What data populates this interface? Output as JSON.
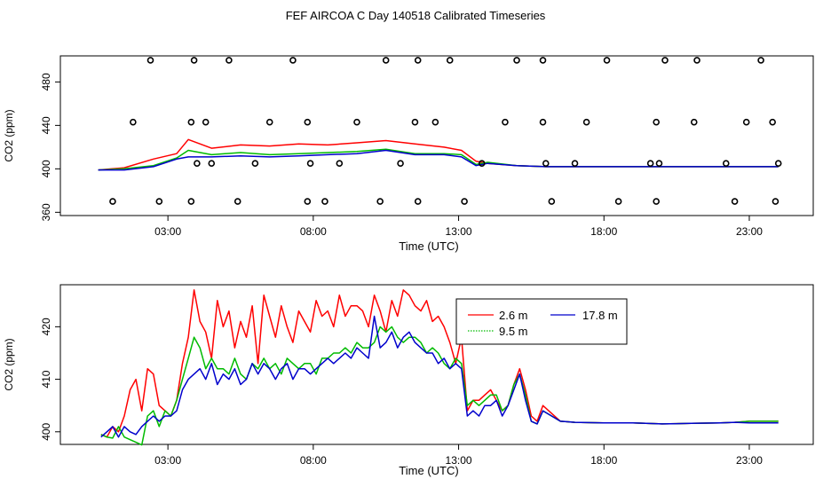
{
  "title": "FEF AIRCOA C  Day 140518  Calibrated Timeseries",
  "chart_data": [
    {
      "type": "line",
      "panel": "top",
      "xlabel": "Time (UTC)",
      "ylabel": "CO2 (ppm)",
      "x_ticks": [
        "03:00",
        "08:00",
        "13:00",
        "18:00",
        "23:00"
      ],
      "x_tick_hours": [
        3,
        8,
        13,
        18,
        23
      ],
      "xlim": [
        -0.7,
        25.2
      ],
      "ylim": [
        357,
        504
      ],
      "y_ticks": [
        360,
        400,
        440,
        480
      ],
      "y_tick_labels": [
        "360",
        "400",
        "440",
        "480"
      ],
      "series": [
        {
          "color": "#ff0000",
          "x": [
            0.6,
            1.5,
            2.5,
            3.3,
            3.7,
            4.5,
            5.5,
            6.5,
            7.5,
            8.5,
            9.5,
            10.5,
            11.5,
            12.5,
            13.1,
            13.6,
            14,
            15,
            16,
            18,
            20,
            22,
            23,
            24
          ],
          "values": [
            399,
            401,
            409,
            414,
            427,
            419,
            422,
            421,
            423,
            422,
            424,
            426,
            423,
            420,
            417,
            407,
            405,
            403,
            402,
            402,
            402,
            402,
            402,
            402
          ]
        },
        {
          "color": "#00bb00",
          "x": [
            0.6,
            1.5,
            2.5,
            3.3,
            3.7,
            4.5,
            5.5,
            6.5,
            7.5,
            8.5,
            9.5,
            10.5,
            11.5,
            12.5,
            13.1,
            13.6,
            14,
            15,
            16,
            18,
            20,
            22,
            23,
            24
          ],
          "values": [
            399,
            400,
            403,
            410,
            417,
            413,
            415,
            413,
            414,
            415,
            416,
            418,
            414,
            414,
            413,
            404,
            406,
            403,
            402,
            402,
            402,
            402,
            402,
            402
          ]
        },
        {
          "color": "#0000cc",
          "x": [
            0.6,
            1.5,
            2.5,
            3.3,
            3.7,
            4.5,
            5.5,
            6.5,
            7.5,
            8.5,
            9.5,
            10.5,
            11.5,
            12.5,
            13.1,
            13.6,
            14,
            15,
            16,
            18,
            20,
            22,
            23,
            24
          ],
          "values": [
            399,
            399,
            402,
            409,
            411,
            411,
            412,
            411,
            412,
            413,
            414,
            417,
            413,
            413,
            411,
            403,
            405,
            403,
            402,
            402,
            402,
            402,
            402,
            402
          ]
        }
      ],
      "calibration_points": {
        "x": [
          1.1,
          2.4,
          1.8,
          2.7,
          3.8,
          3.9,
          3.8,
          4.5,
          4.3,
          4.0,
          5.1,
          5.4,
          6.0,
          6.5,
          7.3,
          7.8,
          7.8,
          7.9,
          8.4,
          8.9,
          9.5,
          10.5,
          10.3,
          11.0,
          11.5,
          11.6,
          11.6,
          12.2,
          12.7,
          13.2,
          13.8,
          14.6,
          15.0,
          16.2,
          16.0,
          15.9,
          15.9,
          17.0,
          17.4,
          18.1,
          18.5,
          19.6,
          20.1,
          19.8,
          19.8,
          19.9,
          21.2,
          21.1,
          22.5,
          22.2,
          22.9,
          23.4,
          23.9,
          23.8,
          24.0
        ],
        "values": [
          370,
          500,
          443,
          370,
          370,
          500,
          443,
          405,
          443,
          405,
          500,
          370,
          405,
          443,
          500,
          443,
          370,
          405,
          370,
          405,
          443,
          500,
          370,
          405,
          443,
          500,
          370,
          443,
          500,
          370,
          405,
          443,
          500,
          370,
          405,
          500,
          443,
          405,
          443,
          500,
          370,
          405,
          500,
          370,
          443,
          405,
          500,
          443,
          370,
          405,
          443,
          500,
          370,
          443,
          405
        ]
      }
    },
    {
      "type": "line",
      "panel": "bottom",
      "xlabel": "Time (UTC)",
      "ylabel": "CO2 (ppm)",
      "x_ticks": [
        "03:00",
        "08:00",
        "13:00",
        "18:00",
        "23:00"
      ],
      "x_tick_hours": [
        3,
        8,
        13,
        18,
        23
      ],
      "xlim": [
        -0.7,
        25.2
      ],
      "ylim": [
        397.6,
        428
      ],
      "y_ticks": [
        400,
        410,
        420
      ],
      "y_tick_labels": [
        "400",
        "410",
        "420"
      ],
      "legend": {
        "placement": "top-right",
        "entries": [
          {
            "label": "2.6 m",
            "color": "#ff0000",
            "dash": "solid"
          },
          {
            "label": "17.8 m",
            "color": "#0000cc",
            "dash": "solid"
          },
          {
            "label": "9.5 m",
            "color": "#00bb00",
            "dash": "dotted"
          }
        ]
      },
      "series": [
        {
          "color": "#ff0000",
          "x": [
            0.7,
            0.9,
            1.1,
            1.3,
            1.5,
            1.7,
            1.9,
            2.1,
            2.3,
            2.5,
            2.7,
            2.9,
            3.1,
            3.3,
            3.5,
            3.7,
            3.9,
            4.1,
            4.3,
            4.5,
            4.7,
            4.9,
            5.1,
            5.3,
            5.5,
            5.7,
            5.9,
            6.1,
            6.3,
            6.5,
            6.7,
            6.9,
            7.1,
            7.3,
            7.5,
            7.7,
            7.9,
            8.1,
            8.3,
            8.5,
            8.7,
            8.9,
            9.1,
            9.3,
            9.5,
            9.7,
            9.9,
            10.1,
            10.3,
            10.5,
            10.7,
            10.9,
            11.1,
            11.3,
            11.5,
            11.7,
            11.9,
            12.1,
            12.3,
            12.5,
            12.7,
            12.9,
            13.1,
            13.3,
            13.5,
            13.7,
            13.9,
            14.1,
            14.3,
            14.5,
            14.7,
            14.9,
            15.1,
            15.3,
            15.5,
            15.7,
            15.9,
            16.5,
            17,
            18,
            19,
            20,
            21,
            22,
            22.5,
            23,
            23.5,
            24
          ],
          "values": [
            399.5,
            399,
            401,
            400,
            403,
            408,
            410,
            404,
            412,
            411,
            405,
            404,
            403,
            406,
            413,
            418,
            427,
            421,
            419,
            414,
            425,
            420,
            423,
            416,
            421,
            418,
            424,
            413,
            426,
            422,
            418,
            424,
            420,
            417,
            423,
            421,
            419,
            425,
            422,
            423,
            420,
            426,
            422,
            424,
            424,
            423,
            420,
            426,
            423,
            419,
            425,
            422,
            427,
            426,
            424,
            423,
            425,
            421,
            422,
            420,
            417,
            413,
            418,
            404,
            406,
            406,
            407,
            408,
            406,
            404,
            405,
            409,
            412,
            408,
            403,
            402,
            405,
            402,
            401.8,
            401.7,
            401.7,
            401.5,
            401.6,
            401.7,
            401.8,
            402,
            402,
            402
          ]
        },
        {
          "color": "#00bb00",
          "x": [
            0.7,
            0.9,
            1.1,
            1.3,
            1.5,
            1.7,
            1.9,
            2.1,
            2.3,
            2.5,
            2.7,
            2.9,
            3.1,
            3.3,
            3.5,
            3.7,
            3.9,
            4.1,
            4.3,
            4.5,
            4.7,
            4.9,
            5.1,
            5.3,
            5.5,
            5.7,
            5.9,
            6.1,
            6.3,
            6.5,
            6.7,
            6.9,
            7.1,
            7.3,
            7.5,
            7.7,
            7.9,
            8.1,
            8.3,
            8.5,
            8.7,
            8.9,
            9.1,
            9.3,
            9.5,
            9.7,
            9.9,
            10.1,
            10.3,
            10.5,
            10.7,
            10.9,
            11.1,
            11.3,
            11.5,
            11.7,
            11.9,
            12.1,
            12.3,
            12.5,
            12.7,
            12.9,
            13.1,
            13.3,
            13.5,
            13.7,
            13.9,
            14.1,
            14.3,
            14.5,
            14.7,
            14.9,
            15.1,
            15.3,
            15.5,
            15.7,
            15.9,
            16.5,
            17,
            18,
            19,
            20,
            21,
            22,
            22.5,
            23,
            23.5,
            24
          ],
          "values": [
            399.5,
            399,
            398.8,
            401,
            399,
            398.5,
            398,
            397.5,
            403,
            404,
            401,
            404,
            403,
            406,
            410,
            414,
            418,
            416,
            412,
            414,
            412,
            412,
            411,
            414,
            411,
            410,
            413,
            412,
            414,
            412,
            413,
            411,
            414,
            413,
            412,
            413,
            413,
            411,
            414,
            414,
            415,
            415,
            416,
            415,
            417,
            416,
            416,
            417,
            420,
            419,
            420,
            418,
            417,
            418,
            418,
            417,
            415,
            416,
            415,
            413,
            412,
            414,
            413,
            405,
            406,
            405,
            406,
            407,
            407,
            404,
            405,
            409,
            411,
            407,
            402,
            401.5,
            404,
            402,
            401.8,
            401.7,
            401.7,
            401.5,
            401.6,
            401.7,
            401.8,
            402,
            402,
            402
          ]
        },
        {
          "color": "#0000cc",
          "x": [
            0.7,
            0.9,
            1.1,
            1.3,
            1.5,
            1.7,
            1.9,
            2.1,
            2.3,
            2.5,
            2.7,
            2.9,
            3.1,
            3.3,
            3.5,
            3.7,
            3.9,
            4.1,
            4.3,
            4.5,
            4.7,
            4.9,
            5.1,
            5.3,
            5.5,
            5.7,
            5.9,
            6.1,
            6.3,
            6.5,
            6.7,
            6.9,
            7.1,
            7.3,
            7.5,
            7.7,
            7.9,
            8.1,
            8.3,
            8.5,
            8.7,
            8.9,
            9.1,
            9.3,
            9.5,
            9.7,
            9.9,
            10.1,
            10.3,
            10.5,
            10.7,
            10.9,
            11.1,
            11.3,
            11.5,
            11.7,
            11.9,
            12.1,
            12.3,
            12.5,
            12.7,
            12.9,
            13.1,
            13.3,
            13.5,
            13.7,
            13.9,
            14.1,
            14.3,
            14.5,
            14.7,
            14.9,
            15.1,
            15.3,
            15.5,
            15.7,
            15.9,
            16.5,
            17,
            18,
            19,
            20,
            21,
            22,
            22.5,
            23,
            23.5,
            24
          ],
          "values": [
            399,
            400,
            401,
            399,
            401,
            400,
            399.5,
            401,
            402,
            403,
            402,
            403,
            403,
            404,
            408,
            410,
            411,
            412,
            410,
            413,
            409,
            411,
            410,
            412,
            409,
            410,
            413,
            411,
            413,
            412,
            410,
            412,
            413,
            410,
            412,
            412,
            411,
            412,
            413,
            414,
            413,
            414,
            415,
            414,
            416,
            415,
            414,
            422,
            416,
            417,
            419,
            416,
            418,
            419,
            417,
            416,
            415,
            415,
            413,
            414,
            412,
            413,
            412,
            403,
            404,
            403,
            405,
            405,
            406,
            403,
            405,
            408,
            411,
            406,
            402,
            401.5,
            404,
            402,
            401.8,
            401.7,
            401.7,
            401.5,
            401.6,
            401.7,
            401.8,
            401.7,
            401.7,
            401.7
          ]
        }
      ]
    }
  ]
}
